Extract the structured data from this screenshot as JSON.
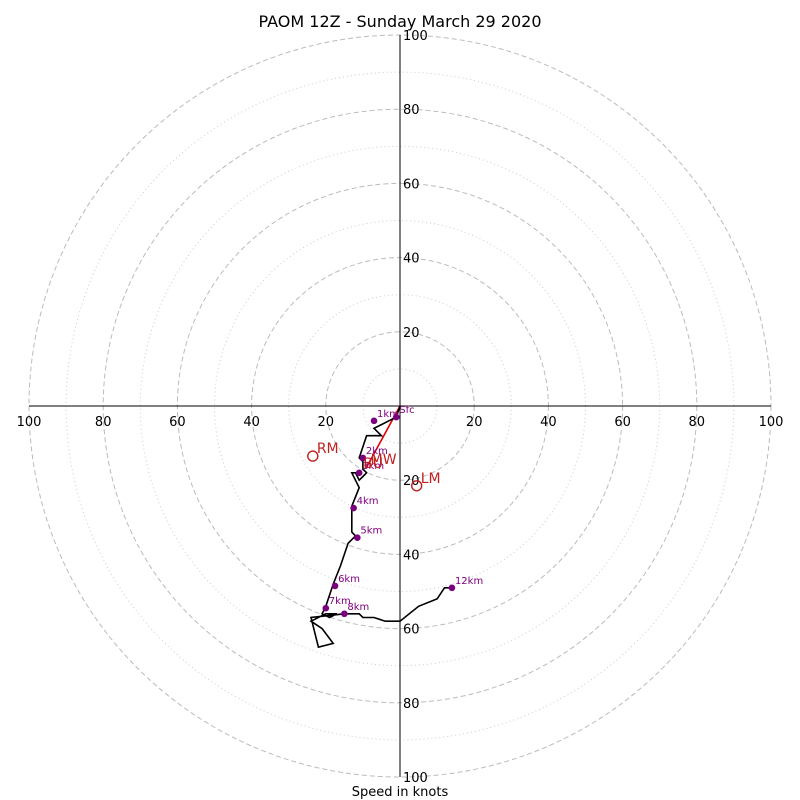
{
  "chart_data": {
    "type": "scatter",
    "title": "PAOM 12Z - Sunday March 29 2020",
    "xlabel": "Speed in knots",
    "rings": [
      10,
      20,
      30,
      40,
      50,
      60,
      70,
      80,
      90,
      100
    ],
    "tick_values": [
      20,
      40,
      60,
      80,
      100
    ],
    "horizontal_tick_labels": [
      "100",
      "80",
      "60",
      "40",
      "20",
      "20",
      "40",
      "60",
      "80",
      "100"
    ],
    "vertical_tick_labels": [
      "100",
      "80",
      "60",
      "40",
      "20",
      "20",
      "40",
      "60",
      "80",
      "100"
    ],
    "xlim": [
      -100,
      100
    ],
    "ylim": [
      -100,
      100
    ],
    "grid": true,
    "hodograph": {
      "color": "#000000",
      "x": [
        0,
        -1,
        -3,
        -5,
        -7,
        -5,
        -9,
        -11,
        -10,
        -10,
        -9,
        -10,
        -11,
        -12,
        -13,
        -11,
        -13,
        -13,
        -12,
        -14,
        -16,
        -18,
        -18,
        -20,
        -21,
        -19,
        -17,
        -20,
        -24,
        -21,
        -18,
        -22,
        -24,
        -15,
        -11,
        -10,
        -7,
        -4,
        0,
        5,
        10,
        12,
        14
      ],
      "y": [
        0,
        -3,
        -4,
        -5,
        -6,
        -8,
        -8,
        -14,
        -15,
        -17,
        -18,
        -19,
        -20,
        -18,
        -18,
        -22,
        -27,
        -34,
        -35,
        -37,
        -43,
        -48,
        -48,
        -54,
        -56,
        -57,
        -56,
        -56,
        -58,
        -60,
        -64,
        -65,
        -57,
        -56,
        -56,
        -57,
        -57,
        -58,
        -58,
        -54,
        -52,
        -49,
        -49
      ]
    },
    "heights": [
      {
        "label": "Sfc",
        "x": -1,
        "y": -3
      },
      {
        "label": "1km",
        "x": -7,
        "y": -4
      },
      {
        "label": "2km",
        "x": -10,
        "y": -14
      },
      {
        "label": "3km",
        "x": -11,
        "y": -18
      },
      {
        "label": "4km",
        "x": -12.5,
        "y": -27.5
      },
      {
        "label": "5km",
        "x": -11.5,
        "y": -35.5
      },
      {
        "label": "6km",
        "x": -17.5,
        "y": -48.5
      },
      {
        "label": "7km",
        "x": -20,
        "y": -54.5
      },
      {
        "label": "8km",
        "x": -15,
        "y": -56
      },
      {
        "label": "12km",
        "x": 14,
        "y": -49
      }
    ],
    "storm_motion_line": {
      "color": "#e00000",
      "x": [
        0,
        -9
      ],
      "y": [
        0,
        -16.5
      ]
    },
    "storm_motions": [
      {
        "label": "RM",
        "x": -23.5,
        "y": -13.5
      },
      {
        "label": "MW",
        "x": -9,
        "y": -16.5
      },
      {
        "label": "BU",
        "x": -11,
        "y": -17.5
      },
      {
        "label": "LM",
        "x": 4.5,
        "y": -21.5
      }
    ]
  }
}
